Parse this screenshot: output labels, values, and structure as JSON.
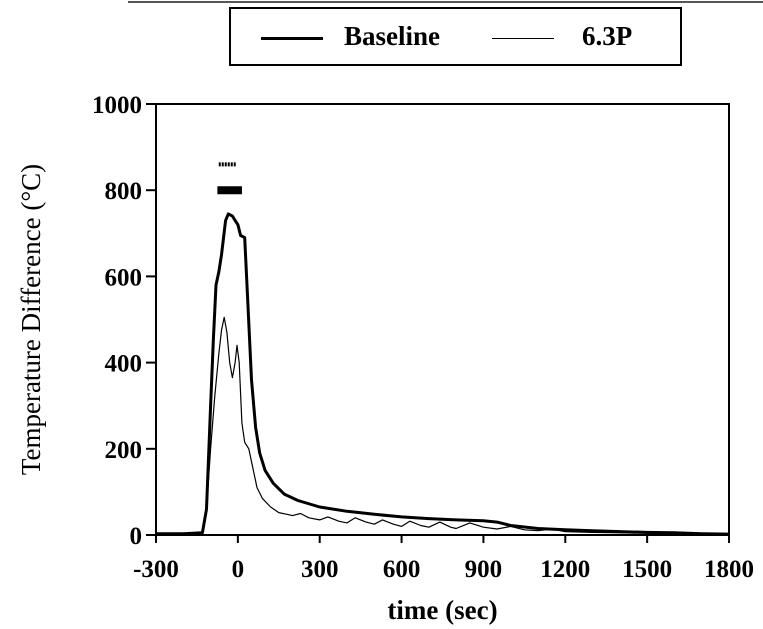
{
  "chart_data": {
    "type": "line",
    "xlabel": "time (sec)",
    "ylabel": "Temperature Difference (°C)",
    "xlim": [
      -300,
      1800
    ],
    "ylim": [
      0,
      1000
    ],
    "x_ticks": [
      "-300",
      "0",
      "300",
      "600",
      "900",
      "1200",
      "1500",
      "1800"
    ],
    "y_ticks": [
      "0",
      "200",
      "400",
      "600",
      "800",
      "1000"
    ],
    "legend_position": "top",
    "grid": false,
    "series": [
      {
        "name": "Baseline",
        "color": "#000000",
        "style": "thick",
        "points": [
          [
            -300,
            3
          ],
          [
            -200,
            3
          ],
          [
            -130,
            5
          ],
          [
            -115,
            60
          ],
          [
            -100,
            300
          ],
          [
            -90,
            450
          ],
          [
            -80,
            580
          ],
          [
            -70,
            610
          ],
          [
            -60,
            650
          ],
          [
            -45,
            730
          ],
          [
            -35,
            745
          ],
          [
            -20,
            740
          ],
          [
            -10,
            730
          ],
          [
            0,
            720
          ],
          [
            10,
            695
          ],
          [
            25,
            690
          ],
          [
            35,
            560
          ],
          [
            50,
            360
          ],
          [
            65,
            250
          ],
          [
            80,
            190
          ],
          [
            100,
            150
          ],
          [
            130,
            120
          ],
          [
            170,
            95
          ],
          [
            220,
            80
          ],
          [
            300,
            65
          ],
          [
            400,
            55
          ],
          [
            500,
            48
          ],
          [
            600,
            42
          ],
          [
            700,
            38
          ],
          [
            800,
            35
          ],
          [
            900,
            33
          ],
          [
            950,
            30
          ],
          [
            1000,
            22
          ],
          [
            1100,
            15
          ],
          [
            1200,
            12
          ],
          [
            1300,
            10
          ],
          [
            1400,
            8
          ],
          [
            1500,
            6
          ],
          [
            1600,
            5
          ],
          [
            1700,
            3
          ],
          [
            1800,
            2
          ]
        ]
      },
      {
        "name": "6.3P",
        "color": "#000000",
        "style": "thin",
        "points": [
          [
            -300,
            3
          ],
          [
            -200,
            2
          ],
          [
            -130,
            5
          ],
          [
            -115,
            60
          ],
          [
            -100,
            200
          ],
          [
            -85,
            320
          ],
          [
            -70,
            420
          ],
          [
            -60,
            475
          ],
          [
            -50,
            505
          ],
          [
            -40,
            470
          ],
          [
            -30,
            400
          ],
          [
            -20,
            365
          ],
          [
            -10,
            400
          ],
          [
            -3,
            440
          ],
          [
            5,
            400
          ],
          [
            15,
            260
          ],
          [
            25,
            215
          ],
          [
            40,
            200
          ],
          [
            55,
            155
          ],
          [
            70,
            110
          ],
          [
            90,
            85
          ],
          [
            120,
            65
          ],
          [
            150,
            52
          ],
          [
            180,
            48
          ],
          [
            200,
            45
          ],
          [
            230,
            50
          ],
          [
            260,
            40
          ],
          [
            300,
            35
          ],
          [
            330,
            42
          ],
          [
            370,
            32
          ],
          [
            400,
            28
          ],
          [
            430,
            40
          ],
          [
            470,
            30
          ],
          [
            500,
            25
          ],
          [
            530,
            35
          ],
          [
            570,
            25
          ],
          [
            600,
            20
          ],
          [
            630,
            32
          ],
          [
            670,
            22
          ],
          [
            700,
            18
          ],
          [
            740,
            30
          ],
          [
            780,
            18
          ],
          [
            800,
            15
          ],
          [
            850,
            28
          ],
          [
            900,
            18
          ],
          [
            950,
            14
          ],
          [
            1000,
            20
          ],
          [
            1050,
            12
          ],
          [
            1100,
            10
          ],
          [
            1150,
            14
          ],
          [
            1200,
            8
          ],
          [
            1300,
            6
          ],
          [
            1400,
            5
          ],
          [
            1500,
            4
          ],
          [
            1600,
            3
          ],
          [
            1700,
            2
          ],
          [
            1800,
            2
          ]
        ]
      }
    ],
    "annotations": [
      {
        "name": "6.3P exposure bar",
        "x_start": -70,
        "x_end": -5,
        "y": 860,
        "style": "thin"
      },
      {
        "name": "Baseline exposure bar",
        "x_start": -75,
        "x_end": 15,
        "y": 800,
        "style": "thick"
      }
    ]
  }
}
